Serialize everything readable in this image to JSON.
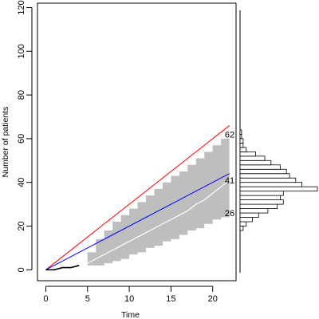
{
  "chart_data": {
    "type": "line",
    "xlabel": "Time",
    "ylabel": "Number of patients",
    "xlim": [
      -1,
      22.8
    ],
    "ylim": [
      -5,
      122
    ],
    "x_ticks": [
      0,
      5,
      10,
      15,
      20
    ],
    "y_ticks": [
      0,
      20,
      40,
      60,
      80,
      100,
      120
    ],
    "grid": false,
    "legend": "none",
    "colors": {
      "upper_line": "#ff0000",
      "mid_line": "#0000ff",
      "band": "#bebebe",
      "median": "#ffffff",
      "observed": "#000000"
    },
    "series": [
      {
        "role": "upper_line",
        "x": [
          0,
          22
        ],
        "y": [
          0,
          66
        ]
      },
      {
        "role": "mid_line",
        "x": [
          0,
          22
        ],
        "y": [
          0,
          44
        ]
      },
      {
        "role": "observed",
        "x": [
          0,
          1,
          2,
          3,
          4
        ],
        "y": [
          0,
          0,
          1,
          1,
          2
        ]
      },
      {
        "role": "median",
        "x": [
          4,
          5,
          6,
          7,
          8,
          9,
          10,
          11,
          12,
          13,
          14,
          15,
          16,
          17,
          18,
          19,
          20,
          21,
          22
        ],
        "y": [
          2,
          3,
          5,
          7,
          9,
          11,
          13,
          15,
          17,
          19,
          21,
          23,
          25,
          27,
          30,
          32,
          35,
          38,
          41
        ]
      }
    ],
    "band": {
      "x": [
        4,
        5,
        6,
        7,
        8,
        9,
        10,
        11,
        12,
        13,
        14,
        15,
        16,
        17,
        18,
        19,
        20,
        21,
        22
      ],
      "lower": [
        2,
        2,
        2,
        3,
        4,
        5,
        7,
        8,
        10,
        11,
        13,
        14,
        16,
        18,
        19,
        21,
        23,
        24,
        26
      ],
      "upper": [
        2,
        8,
        14,
        18,
        22,
        25,
        28,
        31,
        34,
        37,
        40,
        43,
        45,
        48,
        51,
        54,
        57,
        60,
        62
      ]
    },
    "end_labels": [
      {
        "text": "62",
        "y": 62
      },
      {
        "text": "41",
        "y": 41
      },
      {
        "text": "26",
        "y": 26
      }
    ],
    "histogram": {
      "orientation": "horizontal",
      "bin_width": 2,
      "bins": [
        {
          "y0": 18,
          "count": 1
        },
        {
          "y0": 20,
          "count": 2
        },
        {
          "y0": 22,
          "count": 4
        },
        {
          "y0": 24,
          "count": 6
        },
        {
          "y0": 26,
          "count": 9
        },
        {
          "y0": 28,
          "count": 12
        },
        {
          "y0": 30,
          "count": 14
        },
        {
          "y0": 32,
          "count": 13
        },
        {
          "y0": 34,
          "count": 14
        },
        {
          "y0": 36,
          "count": 25
        },
        {
          "y0": 38,
          "count": 20
        },
        {
          "y0": 40,
          "count": 18
        },
        {
          "y0": 42,
          "count": 16
        },
        {
          "y0": 44,
          "count": 15
        },
        {
          "y0": 46,
          "count": 13
        },
        {
          "y0": 48,
          "count": 10
        },
        {
          "y0": 50,
          "count": 8
        },
        {
          "y0": 52,
          "count": 5
        },
        {
          "y0": 54,
          "count": 2
        },
        {
          "y0": 56,
          "count": 1
        },
        {
          "y0": 58,
          "count": 1
        },
        {
          "y0": 60,
          "count": 0.5
        },
        {
          "y0": 62,
          "count": 0.5
        }
      ]
    }
  }
}
